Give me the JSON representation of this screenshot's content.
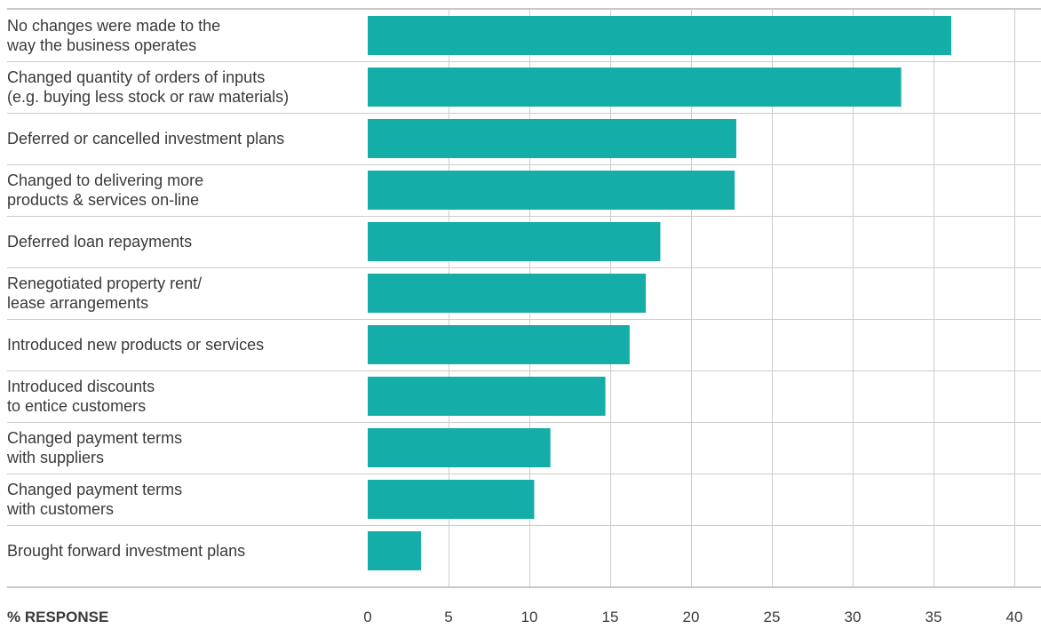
{
  "chart_data": {
    "type": "bar",
    "orientation": "horizontal",
    "categories": [
      [
        "No changes were made to the",
        "way the business operates"
      ],
      [
        "Changed quantity of orders of inputs",
        "(e.g. buying less stock or raw materials)"
      ],
      [
        "Deferred or cancelled investment plans"
      ],
      [
        "Changed to delivering more",
        "products & services on-line"
      ],
      [
        "Deferred loan repayments"
      ],
      [
        "Renegotiated property rent/",
        "lease arrangements"
      ],
      [
        "Introduced new products or services"
      ],
      [
        "Introduced discounts",
        "to entice customers"
      ],
      [
        "Changed payment terms",
        "with suppliers"
      ],
      [
        "Changed payment terms",
        "with customers"
      ],
      [
        "Brought forward investment plans"
      ]
    ],
    "values": [
      36.1,
      33.0,
      22.8,
      22.7,
      18.1,
      17.2,
      16.2,
      14.7,
      11.3,
      10.3,
      3.3
    ],
    "xlabel": "% RESPONSE",
    "xlim": [
      0,
      40
    ],
    "xticks": [
      "0",
      "5",
      "10",
      "15",
      "20",
      "25",
      "30",
      "35",
      "40"
    ],
    "grid": true,
    "bar_color": "#14ada8",
    "grid_color": "#cccccc",
    "axis_color": "#c8c8c8",
    "text_color": "#3a3a3a"
  }
}
